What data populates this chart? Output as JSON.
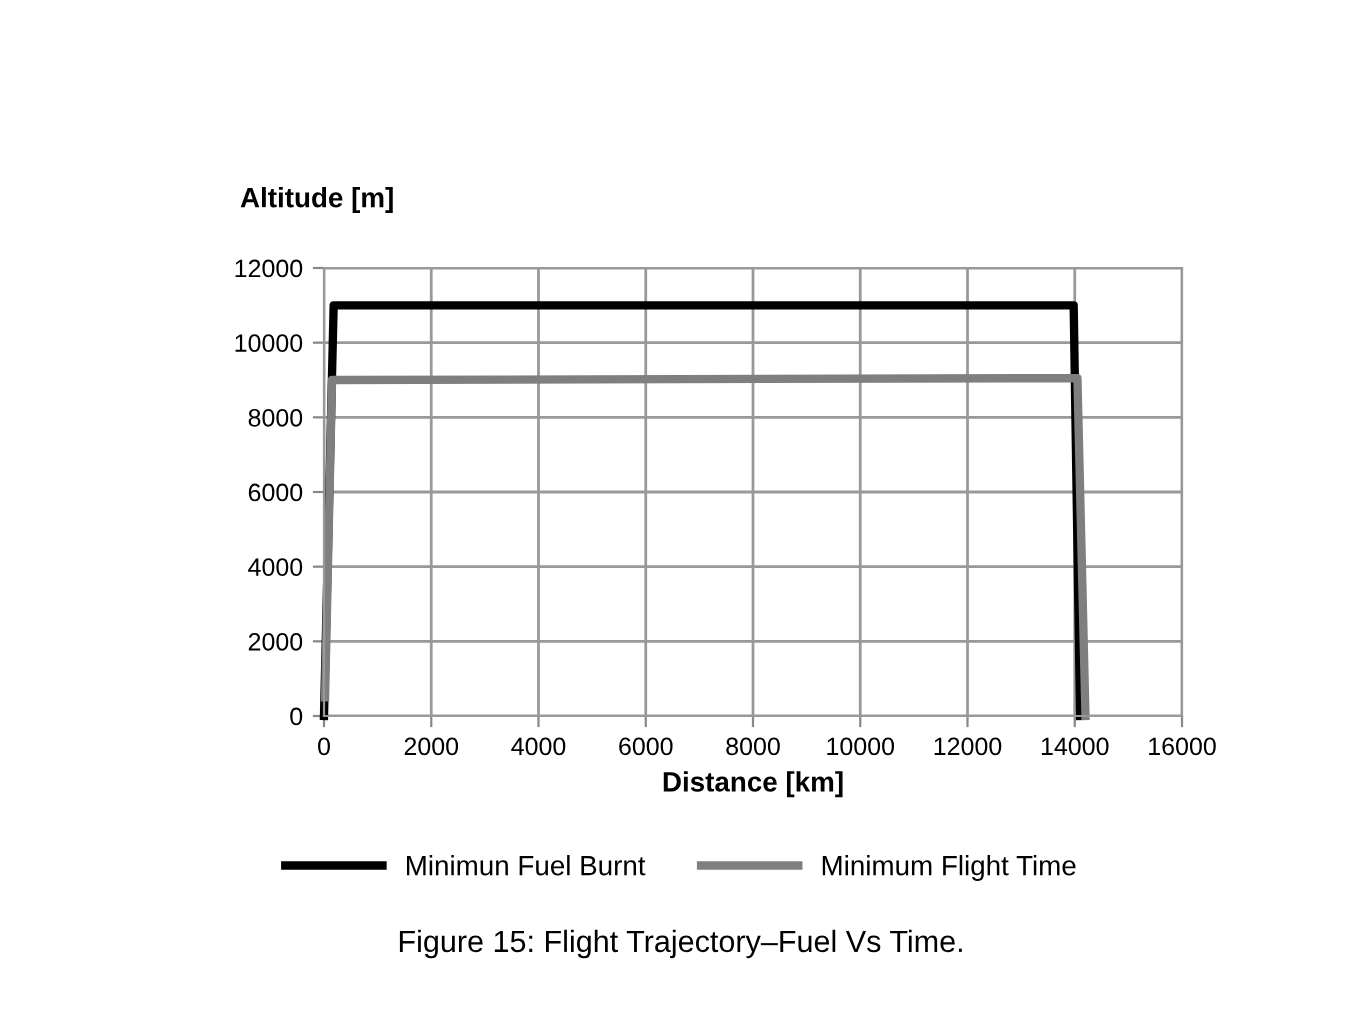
{
  "chart_data": {
    "type": "line",
    "xlabel": "Distance [km]",
    "ylabel": "Altitude [m]",
    "xlim": [
      0,
      16000
    ],
    "xticks": [
      0,
      2000,
      4000,
      6000,
      8000,
      10000,
      12000,
      14000,
      16000
    ],
    "ylim": [
      0,
      12000
    ],
    "yticks": [
      0,
      2000,
      4000,
      6000,
      8000,
      10000,
      12000
    ],
    "grid": true,
    "legend": "bottom",
    "marker": "none",
    "line_style": "solid",
    "series": [
      {
        "name": "Minimun Fuel Burnt",
        "color": "#000000",
        "x": [
          0,
          180,
          13980,
          14100
        ],
        "values": [
          0,
          11000,
          11000,
          0
        ]
      },
      {
        "name": "Minimum Flight Time",
        "color": "#7f7f7f",
        "x": [
          20,
          150,
          14050,
          14200
        ],
        "values": [
          500,
          9000,
          9050,
          0
        ]
      }
    ],
    "annotations": [
      "Figure 15: Flight Trajectory–Fuel Vs Time."
    ]
  }
}
